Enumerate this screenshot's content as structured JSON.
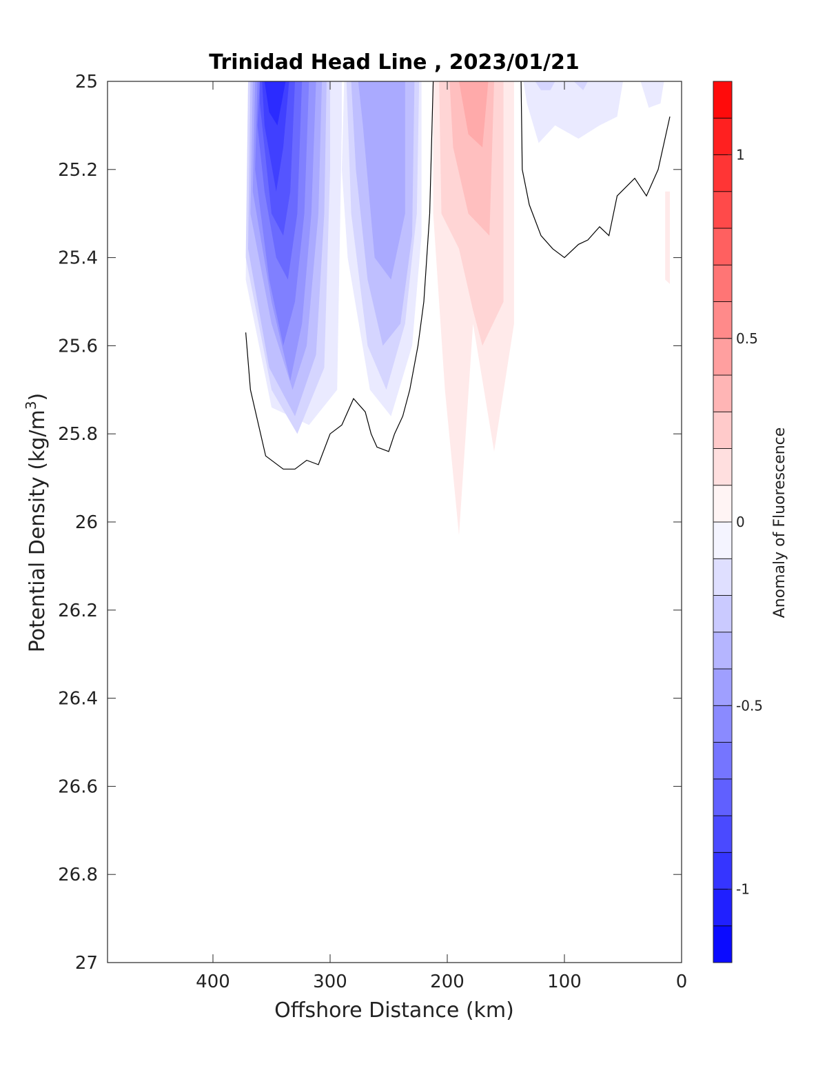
{
  "chart_data": {
    "type": "heatmap",
    "title": "Trinidad Head Line , 2023/01/21",
    "xlabel": "Offshore Distance (km)",
    "ylabel_main": "Potential Density (kg/m",
    "ylabel_sup": "3",
    "ylabel_tail": ")",
    "xlim": [
      490,
      0
    ],
    "ylim": [
      25,
      27
    ],
    "x_reversed": true,
    "y_reversed": true,
    "grid": false,
    "x_ticks": [
      400,
      300,
      200,
      100,
      0
    ],
    "y_ticks": [
      25,
      25.2,
      25.4,
      25.6,
      25.8,
      26,
      26.2,
      26.4,
      26.6,
      26.8,
      27
    ],
    "colorbar": {
      "label": "Anomaly of Fluorescence",
      "range": [
        -1.2,
        1.2
      ],
      "levels": [
        -1.2,
        -1.1,
        -1.0,
        -0.9,
        -0.8,
        -0.7,
        -0.6,
        -0.5,
        -0.4,
        -0.3,
        -0.2,
        -0.1,
        0,
        0.1,
        0.2,
        0.3,
        0.4,
        0.5,
        0.6,
        0.7,
        0.8,
        0.9,
        1.0,
        1.1,
        1.2
      ],
      "ticks": [
        -1,
        -0.5,
        0,
        0.5,
        1
      ],
      "low_color": "#0000ff",
      "mid_color": "#ffffff",
      "high_color": "#ff0000"
    },
    "filled_contours": [
      {
        "value": -0.1,
        "points": [
          [
            370,
            25
          ],
          [
            290,
            25
          ],
          [
            290,
            25.1
          ],
          [
            294,
            25.7
          ],
          [
            318,
            25.78
          ],
          [
            350,
            25.74
          ],
          [
            372,
            25.45
          ]
        ]
      },
      {
        "value": -0.2,
        "points": [
          [
            370,
            25
          ],
          [
            300,
            25
          ],
          [
            300,
            25.2
          ],
          [
            305,
            25.65
          ],
          [
            328,
            25.8
          ],
          [
            350,
            25.7
          ],
          [
            372,
            25.4
          ]
        ]
      },
      {
        "value": -0.3,
        "points": [
          [
            368,
            25
          ],
          [
            303,
            25
          ],
          [
            305,
            25.3
          ],
          [
            312,
            25.62
          ],
          [
            330,
            25.76
          ],
          [
            352,
            25.65
          ],
          [
            370,
            25.38
          ]
        ]
      },
      {
        "value": -0.4,
        "points": [
          [
            366,
            25
          ],
          [
            307,
            25
          ],
          [
            310,
            25.3
          ],
          [
            320,
            25.6
          ],
          [
            332,
            25.7
          ],
          [
            350,
            25.55
          ],
          [
            368,
            25.3
          ]
        ]
      },
      {
        "value": -0.5,
        "points": [
          [
            364,
            25
          ],
          [
            312,
            25
          ],
          [
            316,
            25.3
          ],
          [
            324,
            25.55
          ],
          [
            334,
            25.68
          ],
          [
            350,
            25.5
          ],
          [
            366,
            25.25
          ]
        ]
      },
      {
        "value": -0.6,
        "points": [
          [
            362,
            25
          ],
          [
            318,
            25
          ],
          [
            322,
            25.3
          ],
          [
            330,
            25.5
          ],
          [
            340,
            25.6
          ],
          [
            352,
            25.45
          ],
          [
            364,
            25.2
          ]
        ]
      },
      {
        "value": -0.7,
        "points": [
          [
            360,
            25
          ],
          [
            324,
            25
          ],
          [
            328,
            25.3
          ],
          [
            336,
            25.45
          ],
          [
            346,
            25.4
          ],
          [
            356,
            25.25
          ],
          [
            362,
            25.1
          ]
        ]
      },
      {
        "value": -0.8,
        "points": [
          [
            360,
            25
          ],
          [
            330,
            25
          ],
          [
            334,
            25.25
          ],
          [
            340,
            25.35
          ],
          [
            350,
            25.3
          ],
          [
            360,
            25.05
          ]
        ]
      },
      {
        "value": -0.9,
        "points": [
          [
            358,
            25
          ],
          [
            335,
            25
          ],
          [
            340,
            25.15
          ],
          [
            346,
            25.25
          ],
          [
            356,
            25.1
          ]
        ]
      },
      {
        "value": -1.0,
        "points": [
          [
            356,
            25
          ],
          [
            338,
            25
          ],
          [
            345,
            25.1
          ],
          [
            352,
            25.07
          ]
        ]
      },
      {
        "value": -0.1,
        "points": [
          [
            288,
            25
          ],
          [
            222,
            25
          ],
          [
            222,
            25.35
          ],
          [
            230,
            25.6
          ],
          [
            248,
            25.76
          ],
          [
            266,
            25.7
          ],
          [
            285,
            25.4
          ],
          [
            290,
            25.2
          ]
        ]
      },
      {
        "value": -0.2,
        "points": [
          [
            286,
            25
          ],
          [
            224,
            25
          ],
          [
            226,
            25.3
          ],
          [
            236,
            25.55
          ],
          [
            252,
            25.7
          ],
          [
            268,
            25.6
          ],
          [
            282,
            25.3
          ]
        ]
      },
      {
        "value": -0.3,
        "points": [
          [
            282,
            25
          ],
          [
            228,
            25
          ],
          [
            230,
            25.35
          ],
          [
            240,
            25.55
          ],
          [
            255,
            25.6
          ],
          [
            268,
            25.45
          ],
          [
            278,
            25.2
          ]
        ]
      },
      {
        "value": -0.4,
        "points": [
          [
            276,
            25
          ],
          [
            236,
            25
          ],
          [
            236,
            25.3
          ],
          [
            248,
            25.45
          ],
          [
            262,
            25.4
          ],
          [
            272,
            25.1
          ]
        ]
      },
      {
        "value": -0.1,
        "points": [
          [
            135,
            25
          ],
          [
            50,
            25
          ],
          [
            55,
            25.08
          ],
          [
            70,
            25.1
          ],
          [
            88,
            25.13
          ],
          [
            108,
            25.1
          ],
          [
            122,
            25.14
          ],
          [
            132,
            25.05
          ]
        ]
      },
      {
        "value": -0.1,
        "points": [
          [
            35,
            25
          ],
          [
            15,
            25
          ],
          [
            18,
            25.05
          ],
          [
            28,
            25.06
          ]
        ]
      },
      {
        "value": -0.2,
        "points": [
          [
            125,
            25
          ],
          [
            108,
            25
          ],
          [
            112,
            25.02
          ],
          [
            120,
            25.02
          ]
        ]
      },
      {
        "value": -0.2,
        "points": [
          [
            92,
            25
          ],
          [
            80,
            25
          ],
          [
            84,
            25.02
          ]
        ]
      },
      {
        "value": 0.1,
        "points": [
          [
            212,
            25
          ],
          [
            143,
            25
          ],
          [
            143,
            25.55
          ],
          [
            160,
            25.84
          ],
          [
            178,
            25.55
          ],
          [
            190,
            26.03
          ],
          [
            202,
            25.7
          ],
          [
            212,
            25.3
          ]
        ]
      },
      {
        "value": 0.1,
        "points": [
          [
            14,
            25.25
          ],
          [
            10,
            25.25
          ],
          [
            10,
            25.46
          ],
          [
            14,
            25.45
          ]
        ]
      },
      {
        "value": 0.2,
        "points": [
          [
            207,
            25
          ],
          [
            152,
            25
          ],
          [
            152,
            25.5
          ],
          [
            170,
            25.6
          ],
          [
            178,
            25.52
          ],
          [
            190,
            25.38
          ],
          [
            205,
            25.3
          ]
        ]
      },
      {
        "value": 0.3,
        "points": [
          [
            198,
            25
          ],
          [
            160,
            25
          ],
          [
            164,
            25.35
          ],
          [
            182,
            25.3
          ],
          [
            195,
            25.15
          ]
        ]
      },
      {
        "value": 0.4,
        "points": [
          [
            190,
            25
          ],
          [
            165,
            25
          ],
          [
            170,
            25.15
          ],
          [
            182,
            25.12
          ]
        ]
      }
    ],
    "zero_contour_lines": [
      [
        [
          372,
          25.57
        ],
        [
          368,
          25.7
        ],
        [
          355,
          25.85
        ],
        [
          340,
          25.88
        ],
        [
          330,
          25.88
        ],
        [
          320,
          25.86
        ],
        [
          310,
          25.87
        ],
        [
          300,
          25.8
        ],
        [
          290,
          25.78
        ],
        [
          280,
          25.72
        ],
        [
          270,
          25.75
        ],
        [
          265,
          25.8
        ],
        [
          260,
          25.83
        ],
        [
          250,
          25.84
        ],
        [
          245,
          25.8
        ],
        [
          238,
          25.76
        ],
        [
          232,
          25.7
        ],
        [
          225,
          25.6
        ],
        [
          220,
          25.5
        ],
        [
          215,
          25.3
        ],
        [
          213,
          25.1
        ],
        [
          212,
          25
        ]
      ],
      [
        [
          137,
          25
        ],
        [
          136,
          25.2
        ],
        [
          130,
          25.28
        ],
        [
          120,
          25.35
        ],
        [
          110,
          25.38
        ],
        [
          100,
          25.4
        ],
        [
          88,
          25.37
        ],
        [
          80,
          25.36
        ],
        [
          70,
          25.33
        ],
        [
          62,
          25.35
        ],
        [
          55,
          25.26
        ],
        [
          40,
          25.22
        ],
        [
          30,
          25.26
        ],
        [
          20,
          25.2
        ],
        [
          10,
          25.08
        ]
      ]
    ]
  }
}
